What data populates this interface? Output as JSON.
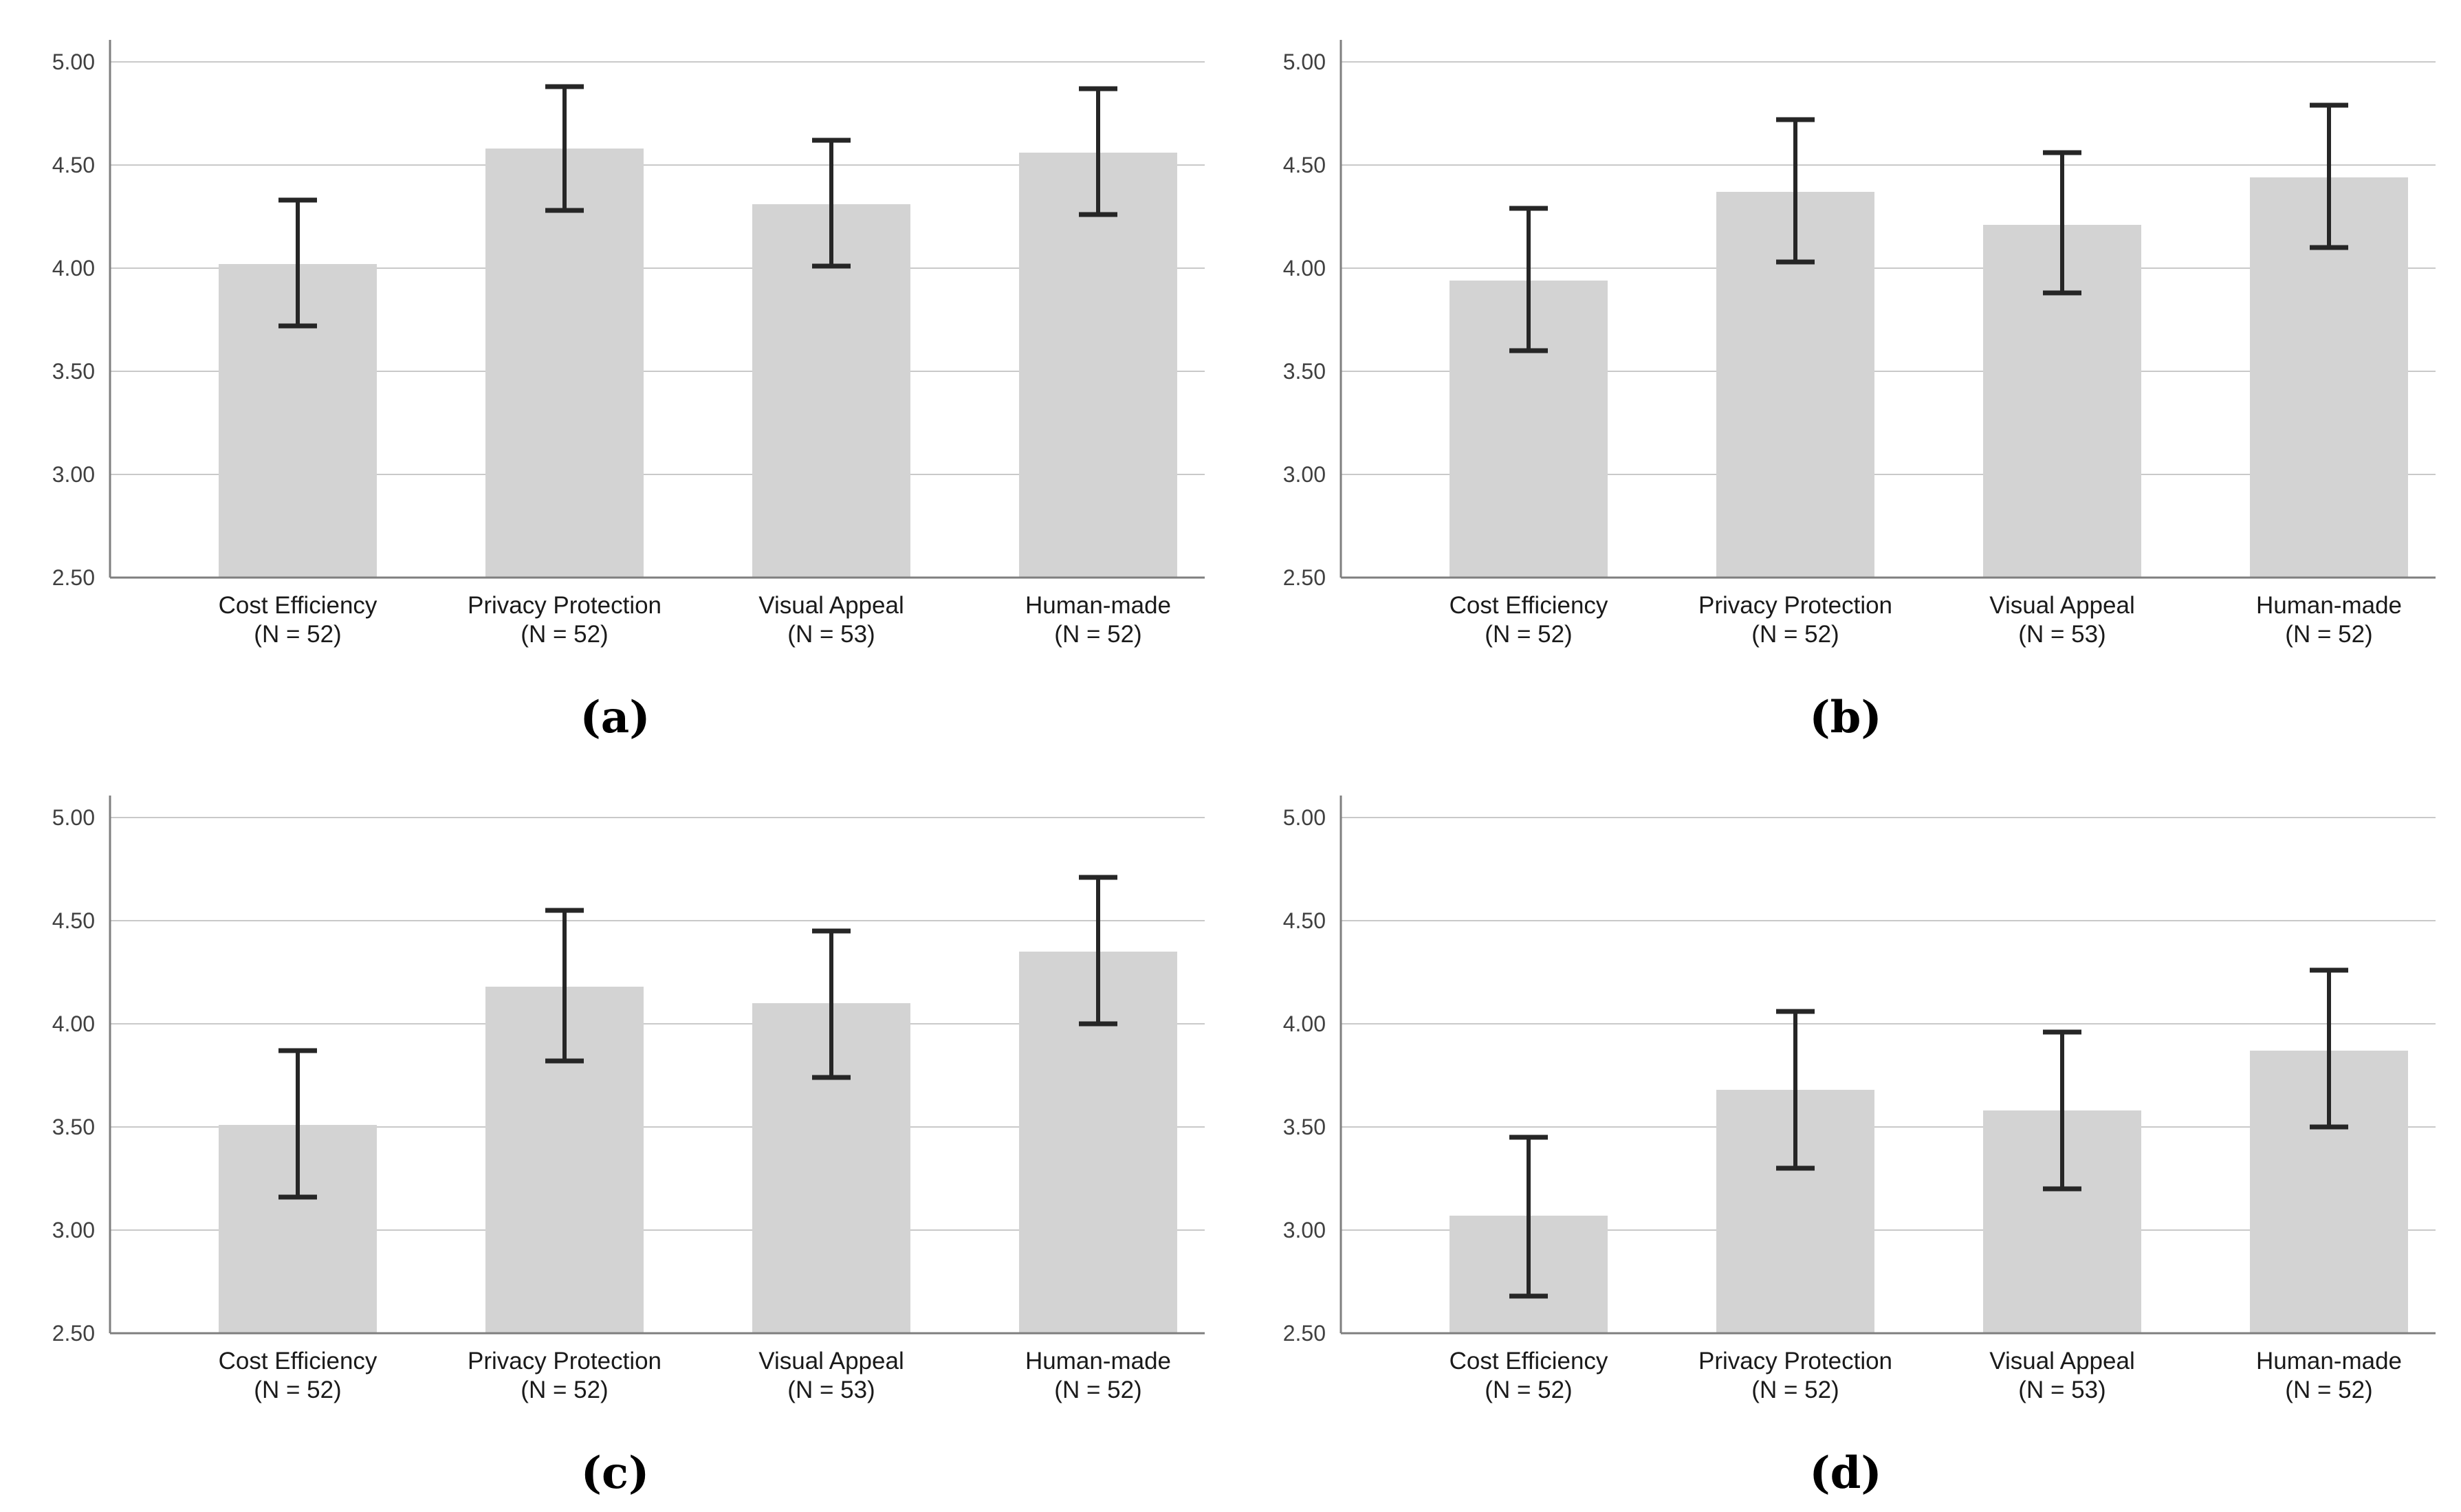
{
  "figure": {
    "background": "#ffffff",
    "bar_color": "#d3d3d3",
    "error_bar_color": "#262626",
    "gridline_color": "#c9c9c9",
    "axis_color": "#7f7f7f",
    "tick_label_color": "#404040",
    "category_label_color": "#1a1a1a"
  },
  "chart_data": [
    {
      "type": "bar",
      "caption": "(a)",
      "title": "",
      "xlabel": "",
      "ylabel": "",
      "ylim": [
        2.5,
        5.0
      ],
      "grid": "horizontal",
      "legend": "none",
      "yticks": [
        "2.50",
        "3.00",
        "3.50",
        "4.00",
        "4.50",
        "5.00"
      ],
      "categories": [
        {
          "label": "Cost Efficiency",
          "n_label": "(N = 52)"
        },
        {
          "label": "Privacy Protection",
          "n_label": "(N = 52)"
        },
        {
          "label": "Visual Appeal",
          "n_label": "(N = 53)"
        },
        {
          "label": "Human-made",
          "n_label": "(N = 52)"
        }
      ],
      "values": [
        4.02,
        4.58,
        4.31,
        4.56
      ],
      "ci_low": [
        3.72,
        4.28,
        4.01,
        4.26
      ],
      "ci_high": [
        4.33,
        4.88,
        4.62,
        4.87
      ]
    },
    {
      "type": "bar",
      "caption": "(b)",
      "title": "",
      "xlabel": "",
      "ylabel": "",
      "ylim": [
        2.5,
        5.0
      ],
      "grid": "horizontal",
      "legend": "none",
      "yticks": [
        "2.50",
        "3.00",
        "3.50",
        "4.00",
        "4.50",
        "5.00"
      ],
      "categories": [
        {
          "label": "Cost Efficiency",
          "n_label": "(N = 52)"
        },
        {
          "label": "Privacy Protection",
          "n_label": "(N = 52)"
        },
        {
          "label": "Visual Appeal",
          "n_label": "(N = 53)"
        },
        {
          "label": "Human-made",
          "n_label": "(N = 52)"
        }
      ],
      "values": [
        3.94,
        4.37,
        4.21,
        4.44
      ],
      "ci_low": [
        3.6,
        4.03,
        3.88,
        4.1
      ],
      "ci_high": [
        4.29,
        4.72,
        4.56,
        4.79
      ]
    },
    {
      "type": "bar",
      "caption": "(c)",
      "title": "",
      "xlabel": "",
      "ylabel": "",
      "ylim": [
        2.5,
        5.0
      ],
      "grid": "horizontal",
      "legend": "none",
      "yticks": [
        "2.50",
        "3.00",
        "3.50",
        "4.00",
        "4.50",
        "5.00"
      ],
      "categories": [
        {
          "label": "Cost Efficiency",
          "n_label": "(N = 52)"
        },
        {
          "label": "Privacy Protection",
          "n_label": "(N = 52)"
        },
        {
          "label": "Visual Appeal",
          "n_label": "(N = 53)"
        },
        {
          "label": "Human-made",
          "n_label": "(N = 52)"
        }
      ],
      "values": [
        3.51,
        4.18,
        4.1,
        4.35
      ],
      "ci_low": [
        3.16,
        3.82,
        3.74,
        4.0
      ],
      "ci_high": [
        3.87,
        4.55,
        4.45,
        4.71
      ]
    },
    {
      "type": "bar",
      "caption": "(d)",
      "title": "",
      "xlabel": "",
      "ylabel": "",
      "ylim": [
        2.5,
        5.0
      ],
      "grid": "horizontal",
      "legend": "none",
      "yticks": [
        "2.50",
        "3.00",
        "3.50",
        "4.00",
        "4.50",
        "5.00"
      ],
      "categories": [
        {
          "label": "Cost Efficiency",
          "n_label": "(N = 52)"
        },
        {
          "label": "Privacy Protection",
          "n_label": "(N = 52)"
        },
        {
          "label": "Visual Appeal",
          "n_label": "(N = 53)"
        },
        {
          "label": "Human-made",
          "n_label": "(N = 52)"
        }
      ],
      "values": [
        3.07,
        3.68,
        3.58,
        3.87
      ],
      "ci_low": [
        2.68,
        3.3,
        3.2,
        3.5
      ],
      "ci_high": [
        3.45,
        4.06,
        3.96,
        4.26
      ]
    }
  ]
}
